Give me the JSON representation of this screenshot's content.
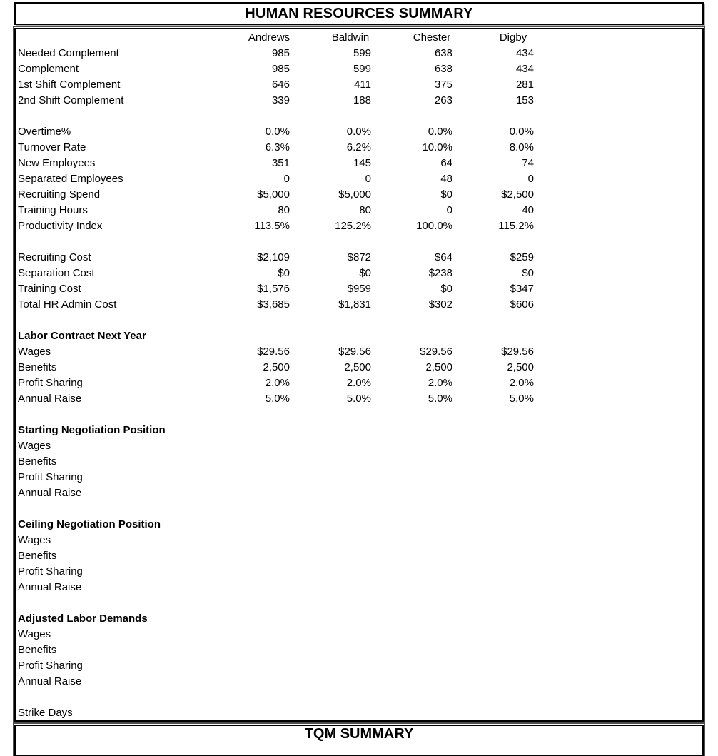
{
  "report": {
    "title": "HUMAN RESOURCES SUMMARY",
    "columns": [
      "Andrews",
      "Baldwin",
      "Chester",
      "Digby"
    ],
    "rows": [
      {
        "type": "data",
        "label": "Needed Complement",
        "values": [
          "985",
          "599",
          "638",
          "434"
        ]
      },
      {
        "type": "data",
        "label": "Complement",
        "values": [
          "985",
          "599",
          "638",
          "434"
        ]
      },
      {
        "type": "data",
        "label": "1st Shift Complement",
        "values": [
          "646",
          "411",
          "375",
          "281"
        ]
      },
      {
        "type": "data",
        "label": "2nd Shift Complement",
        "values": [
          "339",
          "188",
          "263",
          "153"
        ]
      },
      {
        "type": "blank"
      },
      {
        "type": "data",
        "label": "Overtime%",
        "values": [
          "0.0%",
          "0.0%",
          "0.0%",
          "0.0%"
        ]
      },
      {
        "type": "data",
        "label": "Turnover Rate",
        "values": [
          "6.3%",
          "6.2%",
          "10.0%",
          "8.0%"
        ]
      },
      {
        "type": "data",
        "label": "New Employees",
        "values": [
          "351",
          "145",
          "64",
          "74"
        ]
      },
      {
        "type": "data",
        "label": "Separated Employees",
        "values": [
          "0",
          "0",
          "48",
          "0"
        ]
      },
      {
        "type": "data",
        "label": "Recruiting Spend",
        "values": [
          "$5,000",
          "$5,000",
          "$0",
          "$2,500"
        ]
      },
      {
        "type": "data",
        "label": "Training Hours",
        "values": [
          "80",
          "80",
          "0",
          "40"
        ]
      },
      {
        "type": "data",
        "label": "Productivity Index",
        "values": [
          "113.5%",
          "125.2%",
          "100.0%",
          "115.2%"
        ]
      },
      {
        "type": "blank"
      },
      {
        "type": "data",
        "label": "Recruiting Cost",
        "values": [
          "$2,109",
          "$872",
          "$64",
          "$259"
        ]
      },
      {
        "type": "data",
        "label": "Separation Cost",
        "values": [
          "$0",
          "$0",
          "$238",
          "$0"
        ]
      },
      {
        "type": "data",
        "label": "Training Cost",
        "values": [
          "$1,576",
          "$959",
          "$0",
          "$347"
        ]
      },
      {
        "type": "data",
        "label": "Total HR Admin Cost",
        "values": [
          "$3,685",
          "$1,831",
          "$302",
          "$606"
        ]
      },
      {
        "type": "blank"
      },
      {
        "type": "section",
        "label": "Labor Contract Next Year"
      },
      {
        "type": "data",
        "label": "Wages",
        "values": [
          "$29.56",
          "$29.56",
          "$29.56",
          "$29.56"
        ]
      },
      {
        "type": "data",
        "label": "Benefits",
        "values": [
          "2,500",
          "2,500",
          "2,500",
          "2,500"
        ]
      },
      {
        "type": "data",
        "label": "Profit Sharing",
        "values": [
          "2.0%",
          "2.0%",
          "2.0%",
          "2.0%"
        ]
      },
      {
        "type": "data",
        "label": "Annual Raise",
        "values": [
          "5.0%",
          "5.0%",
          "5.0%",
          "5.0%"
        ]
      },
      {
        "type": "blank"
      },
      {
        "type": "section",
        "label": "Starting Negotiation Position"
      },
      {
        "type": "data",
        "label": "Wages"
      },
      {
        "type": "data",
        "label": "Benefits"
      },
      {
        "type": "data",
        "label": "Profit Sharing"
      },
      {
        "type": "data",
        "label": "Annual Raise"
      },
      {
        "type": "blank"
      },
      {
        "type": "section",
        "label": "Ceiling Negotiation Position"
      },
      {
        "type": "data",
        "label": "Wages"
      },
      {
        "type": "data",
        "label": "Benefits"
      },
      {
        "type": "data",
        "label": "Profit Sharing"
      },
      {
        "type": "data",
        "label": "Annual Raise"
      },
      {
        "type": "blank"
      },
      {
        "type": "section",
        "label": "Adjusted Labor Demands"
      },
      {
        "type": "data",
        "label": "Wages"
      },
      {
        "type": "data",
        "label": "Benefits"
      },
      {
        "type": "data",
        "label": "Profit Sharing"
      },
      {
        "type": "data",
        "label": "Annual Raise"
      },
      {
        "type": "blank"
      },
      {
        "type": "data",
        "label": "Strike Days"
      }
    ]
  },
  "next_section": {
    "title": "TQM SUMMARY"
  }
}
